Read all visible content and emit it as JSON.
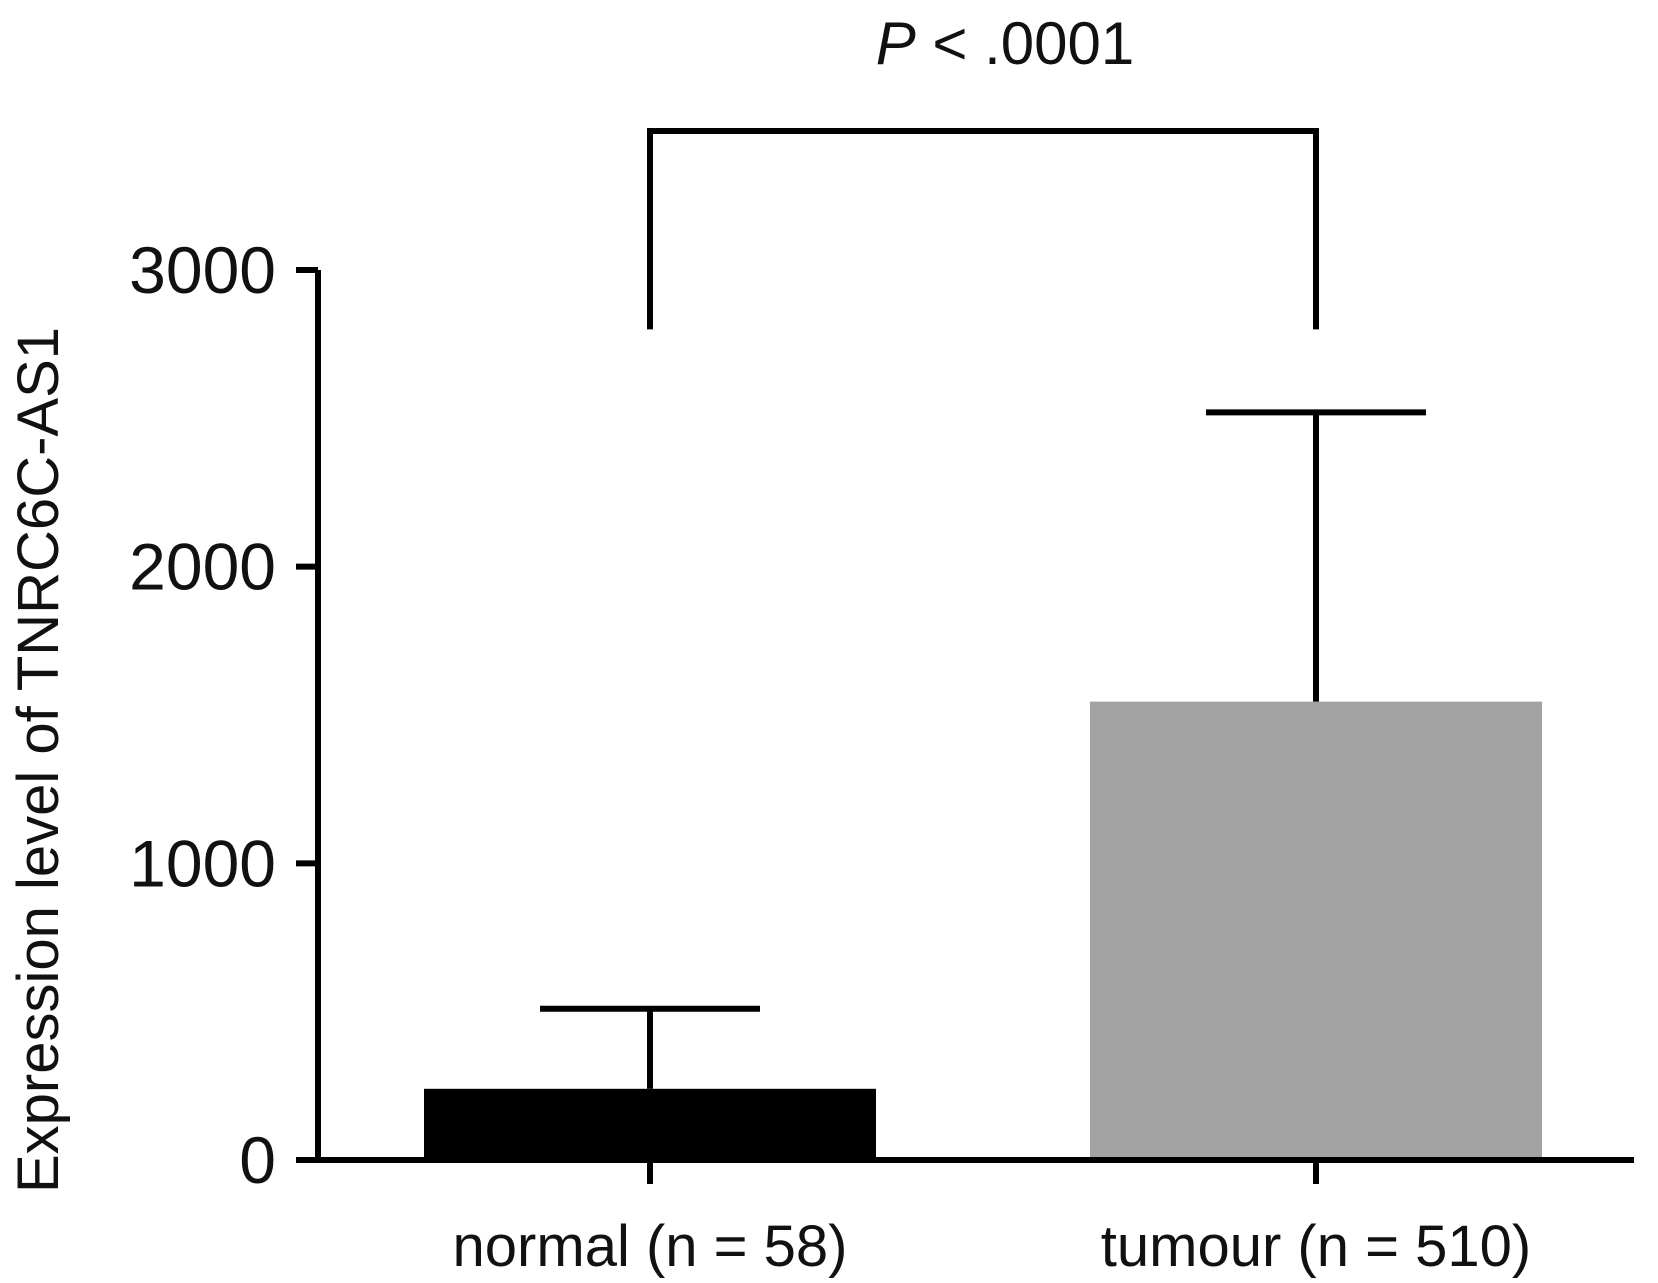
{
  "chart_data": {
    "type": "bar",
    "categories": [
      "normal (n = 58)",
      "tumour (n = 510)"
    ],
    "values": [
      240,
      1545
    ],
    "error_upper": [
      510,
      2520
    ],
    "colors": [
      "#000000",
      "#a3a3a3"
    ],
    "xlabel": "",
    "ylabel": "Expression level of TNRC6C-AS1",
    "ylim": [
      0,
      3000
    ],
    "yticks": [
      0,
      1000,
      2000,
      3000
    ],
    "grid": false,
    "legend": "none",
    "annotation": {
      "p_italic": "P",
      "p_text": " < .0001",
      "bracket_bottom": 2800
    }
  }
}
